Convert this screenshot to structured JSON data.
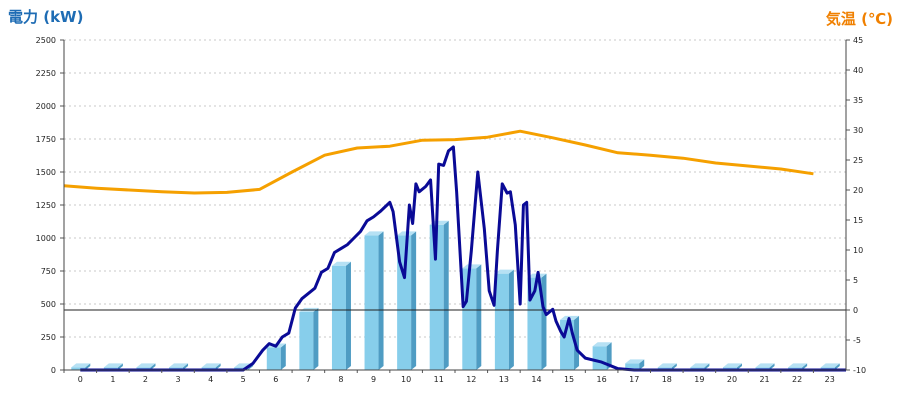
{
  "chart_data": {
    "type": "bar",
    "left_axis_title": "電力 (kW)",
    "right_axis_title": "気温 (℃)",
    "categories": [
      "0",
      "1",
      "2",
      "3",
      "4",
      "5",
      "6",
      "7",
      "8",
      "9",
      "10",
      "11",
      "12",
      "13",
      "14",
      "15",
      "16",
      "17",
      "18",
      "19",
      "20",
      "21",
      "22",
      "23"
    ],
    "y_left": {
      "min": 0,
      "max": 2500,
      "ticks": [
        "0",
        "250",
        "500",
        "750",
        "1000",
        "1250",
        "1500",
        "1750",
        "2000",
        "2250",
        "2500"
      ]
    },
    "y_right": {
      "min": -10,
      "max": 45,
      "ticks": [
        "-10",
        "-5",
        "0",
        "5",
        "10",
        "15",
        "20",
        "25",
        "30",
        "35",
        "40",
        "45"
      ]
    },
    "grid": true,
    "bars": {
      "axis": "left",
      "color": "#87ceeb",
      "values": [
        20,
        20,
        20,
        20,
        20,
        20,
        170,
        440,
        790,
        1020,
        1020,
        1100,
        770,
        730,
        700,
        380,
        180,
        50,
        20,
        20,
        20,
        20,
        20,
        20
      ]
    },
    "power_line": {
      "axis": "left",
      "color": "#0a0a96",
      "points": [
        [
          0,
          0
        ],
        [
          5,
          0
        ],
        [
          5.3,
          50
        ],
        [
          5.6,
          150
        ],
        [
          5.8,
          200
        ],
        [
          6.0,
          180
        ],
        [
          6.2,
          250
        ],
        [
          6.4,
          280
        ],
        [
          6.6,
          470
        ],
        [
          6.8,
          540
        ],
        [
          7.0,
          580
        ],
        [
          7.2,
          620
        ],
        [
          7.4,
          740
        ],
        [
          7.6,
          770
        ],
        [
          7.8,
          890
        ],
        [
          8.0,
          920
        ],
        [
          8.2,
          950
        ],
        [
          8.4,
          1000
        ],
        [
          8.6,
          1050
        ],
        [
          8.8,
          1130
        ],
        [
          9.0,
          1160
        ],
        [
          9.2,
          1200
        ],
        [
          9.5,
          1270
        ],
        [
          9.6,
          1200
        ],
        [
          9.8,
          820
        ],
        [
          9.95,
          700
        ],
        [
          10.1,
          1250
        ],
        [
          10.2,
          1110
        ],
        [
          10.3,
          1410
        ],
        [
          10.4,
          1350
        ],
        [
          10.6,
          1390
        ],
        [
          10.75,
          1440
        ],
        [
          10.9,
          840
        ],
        [
          11.0,
          1560
        ],
        [
          11.15,
          1550
        ],
        [
          11.3,
          1660
        ],
        [
          11.45,
          1690
        ],
        [
          11.55,
          1350
        ],
        [
          11.75,
          480
        ],
        [
          11.85,
          520
        ],
        [
          12.0,
          900
        ],
        [
          12.2,
          1500
        ],
        [
          12.4,
          1070
        ],
        [
          12.55,
          600
        ],
        [
          12.7,
          490
        ],
        [
          12.8,
          900
        ],
        [
          12.95,
          1410
        ],
        [
          13.1,
          1340
        ],
        [
          13.2,
          1350
        ],
        [
          13.35,
          1100
        ],
        [
          13.5,
          500
        ],
        [
          13.6,
          1250
        ],
        [
          13.7,
          1270
        ],
        [
          13.8,
          530
        ],
        [
          13.95,
          600
        ],
        [
          14.05,
          740
        ],
        [
          14.2,
          480
        ],
        [
          14.3,
          420
        ],
        [
          14.5,
          460
        ],
        [
          14.6,
          370
        ],
        [
          14.75,
          290
        ],
        [
          14.85,
          250
        ],
        [
          15.0,
          390
        ],
        [
          15.1,
          280
        ],
        [
          15.25,
          150
        ],
        [
          15.5,
          90
        ],
        [
          16.0,
          60
        ],
        [
          16.5,
          10
        ],
        [
          17.0,
          0
        ],
        [
          23.5,
          0
        ]
      ]
    },
    "temperature_line": {
      "axis": "right",
      "color": "#f5a000",
      "points": [
        [
          -0.5,
          20.7
        ],
        [
          0.5,
          20.3
        ],
        [
          1.5,
          20.0
        ],
        [
          2.5,
          19.7
        ],
        [
          3.5,
          19.5
        ],
        [
          4.5,
          19.6
        ],
        [
          5.5,
          20.1
        ],
        [
          6.5,
          23.0
        ],
        [
          7.5,
          25.8
        ],
        [
          8.5,
          27.0
        ],
        [
          9.5,
          27.3
        ],
        [
          10.5,
          28.3
        ],
        [
          11.5,
          28.4
        ],
        [
          12.5,
          28.8
        ],
        [
          13.5,
          29.8
        ],
        [
          14.5,
          28.7
        ],
        [
          15.5,
          27.5
        ],
        [
          16.5,
          26.2
        ],
        [
          17.5,
          25.8
        ],
        [
          18.5,
          25.3
        ],
        [
          19.5,
          24.5
        ],
        [
          20.5,
          24.0
        ],
        [
          21.5,
          23.5
        ],
        [
          22.5,
          22.7
        ]
      ]
    }
  }
}
